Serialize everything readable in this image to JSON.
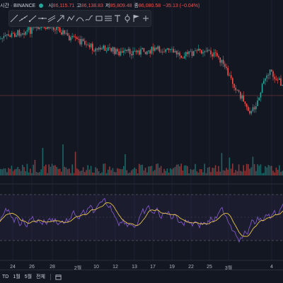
{
  "header": {
    "symbol": "시간 · BINANCE",
    "ohlc": [
      {
        "label": "시",
        "value": "86,115.71"
      },
      {
        "label": "고",
        "value": "86,138.83"
      },
      {
        "label": "저",
        "value": "85,809.48"
      },
      {
        "label": "종",
        "value": "86,080.58"
      }
    ],
    "change": "−35.13 (−0.04%)"
  },
  "toolbar": {
    "tools": [
      "trend-line-icon",
      "extended-line-icon",
      "ray-icon",
      "horizontal-line-icon",
      "parallel-channel-icon",
      "arrow-icon",
      "path-icon",
      "curve-icon",
      "brush-icon",
      "rectangle-icon",
      "fib-icon",
      "text-icon",
      "anchor-icon",
      "flag-icon",
      "plus-icon"
    ]
  },
  "x_axis": {
    "labels": [
      {
        "text": "24"
      },
      {
        "text": "26"
      },
      {
        "text": "28"
      },
      {
        "text": "2월"
      },
      {
        "text": "10"
      },
      {
        "text": "12"
      },
      {
        "text": "13"
      },
      {
        "text": "17"
      },
      {
        "text": "19"
      },
      {
        "text": "22"
      },
      {
        "text": "25"
      },
      {
        "text": "3월"
      },
      {
        "text": "4"
      }
    ]
  },
  "bottom_bar": {
    "ranges": [
      "TD",
      "1월",
      "5월",
      "전체"
    ]
  },
  "colors": {
    "background": "#131722",
    "up": "#26a69a",
    "down": "#ef5350",
    "rsi_line": "#7e57c2",
    "rsi_ma": "#e8c547",
    "rsi_band_fill": "#7e57c2",
    "price_line": "#ef5350"
  }
}
